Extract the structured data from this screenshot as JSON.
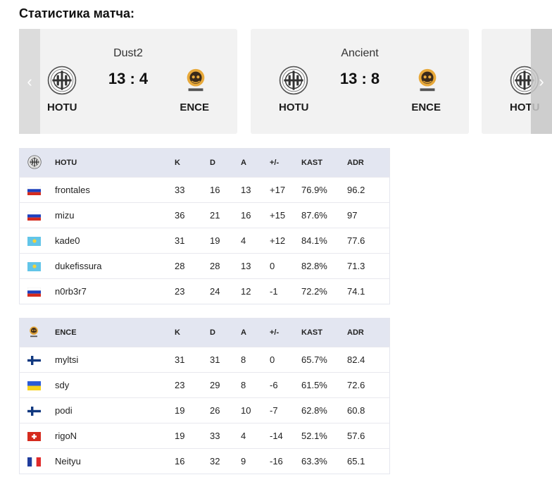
{
  "title": "Статистика матча:",
  "maps": [
    {
      "map": "Dust2",
      "score": "13 : 4",
      "team1": "HOTU",
      "team2": "ENCE"
    },
    {
      "map": "Ancient",
      "score": "13 : 8",
      "team1": "HOTU",
      "team2": "ENCE"
    },
    {
      "map": "",
      "score": "",
      "team1": "HOTU",
      "team2": ""
    }
  ],
  "nav": {
    "prev": "‹",
    "next": "›"
  },
  "columns": {
    "k": "K",
    "d": "D",
    "a": "A",
    "pm": "+/-",
    "kast": "KAST",
    "adr": "ADR"
  },
  "teams": [
    {
      "name": "HOTU",
      "players": [
        {
          "flag": "ru",
          "name": "frontales",
          "k": "33",
          "d": "16",
          "a": "13",
          "pm": "+17",
          "kast": "76.9%",
          "adr": "96.2"
        },
        {
          "flag": "ru",
          "name": "mizu",
          "k": "36",
          "d": "21",
          "a": "16",
          "pm": "+15",
          "kast": "87.6%",
          "adr": "97"
        },
        {
          "flag": "kz",
          "name": "kade0",
          "k": "31",
          "d": "19",
          "a": "4",
          "pm": "+12",
          "kast": "84.1%",
          "adr": "77.6"
        },
        {
          "flag": "kz",
          "name": "dukefissura",
          "k": "28",
          "d": "28",
          "a": "13",
          "pm": "0",
          "kast": "82.8%",
          "adr": "71.3"
        },
        {
          "flag": "ru",
          "name": "n0rb3r7",
          "k": "23",
          "d": "24",
          "a": "12",
          "pm": "-1",
          "kast": "72.2%",
          "adr": "74.1"
        }
      ]
    },
    {
      "name": "ENCE",
      "players": [
        {
          "flag": "fi",
          "name": "myltsi",
          "k": "31",
          "d": "31",
          "a": "8",
          "pm": "0",
          "kast": "65.7%",
          "adr": "82.4"
        },
        {
          "flag": "ua",
          "name": "sdy",
          "k": "23",
          "d": "29",
          "a": "8",
          "pm": "-6",
          "kast": "61.5%",
          "adr": "72.6"
        },
        {
          "flag": "fi",
          "name": "podi",
          "k": "19",
          "d": "26",
          "a": "10",
          "pm": "-7",
          "kast": "62.8%",
          "adr": "60.8"
        },
        {
          "flag": "ch",
          "name": "rigoN",
          "k": "19",
          "d": "33",
          "a": "4",
          "pm": "-14",
          "kast": "52.1%",
          "adr": "57.6"
        },
        {
          "flag": "fr",
          "name": "Neityu",
          "k": "16",
          "d": "32",
          "a": "9",
          "pm": "-16",
          "kast": "63.3%",
          "adr": "65.1"
        }
      ]
    }
  ],
  "colors": {
    "positive": "#3aa43a",
    "negative": "#d9462f",
    "header_bg": "#e3e6f1",
    "card_bg": "#f2f2f2"
  }
}
